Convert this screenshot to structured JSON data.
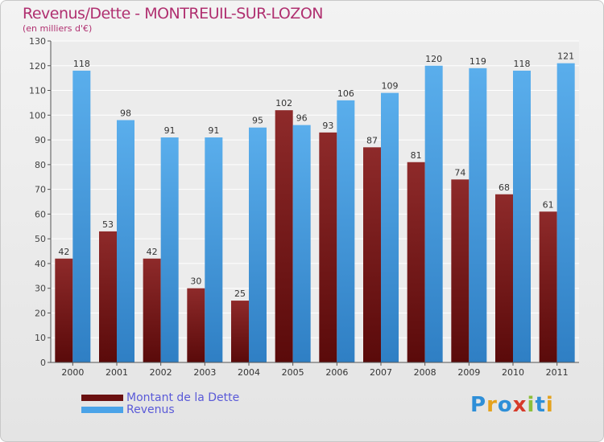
{
  "header": {
    "title": "Revenus/Dette - MONTREUIL-SUR-LOZON",
    "subtitle": "(en milliers d'€)"
  },
  "logo": {
    "text": "Proxiti",
    "colors": [
      "#2e8fd8",
      "#e4a21e",
      "#2e8fd8",
      "#d63a2a",
      "#8cbf3a",
      "#2e8fd8",
      "#e4a21e"
    ]
  },
  "chart_data": {
    "type": "bar",
    "categories": [
      "2000",
      "2001",
      "2002",
      "2003",
      "2004",
      "2005",
      "2006",
      "2007",
      "2008",
      "2009",
      "2010",
      "2011"
    ],
    "series": [
      {
        "name": "Montant de la Dette",
        "color": "#7a1c1c",
        "values": [
          42,
          53,
          42,
          30,
          25,
          102,
          93,
          87,
          81,
          74,
          68,
          61
        ]
      },
      {
        "name": "Revenus",
        "color": "#4aa3e8",
        "values": [
          118,
          98,
          91,
          91,
          95,
          96,
          106,
          109,
          120,
          119,
          118,
          121
        ]
      }
    ],
    "ylim": [
      0,
      130
    ],
    "yticks": [
      0,
      10,
      20,
      30,
      40,
      50,
      60,
      70,
      80,
      90,
      100,
      110,
      120,
      130
    ],
    "grid": true,
    "legend": "bottom-left"
  }
}
